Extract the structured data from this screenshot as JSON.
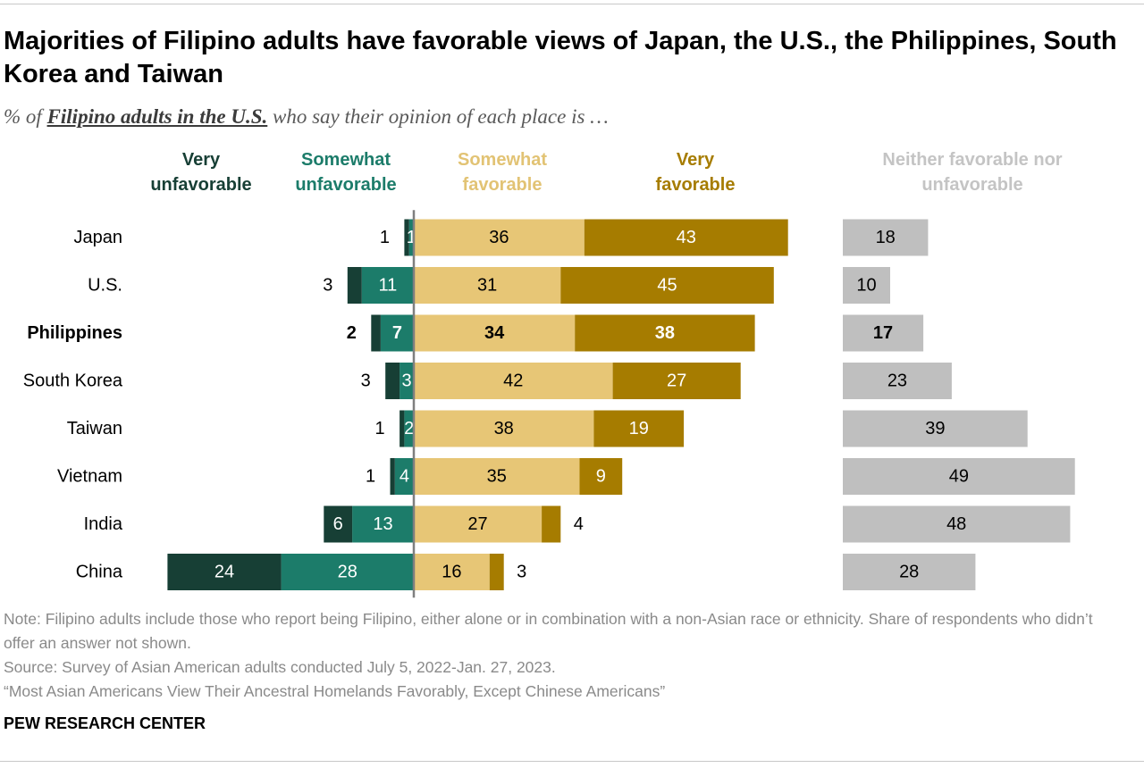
{
  "header": {
    "title": "Majorities of Filipino adults have favorable views of Japan, the U.S., the Philippines, South Korea and Taiwan",
    "subtitle_prefix": "% of ",
    "subtitle_emphasis": "Filipino adults in the U.S.",
    "subtitle_suffix": " who say their opinion of each place is …"
  },
  "chart_data": {
    "type": "bar",
    "orientation": "horizontal",
    "stacked": "diverging",
    "categories": [
      "Japan",
      "U.S.",
      "Philippines",
      "South Korea",
      "Taiwan",
      "Vietnam",
      "India",
      "China"
    ],
    "highlight_category": "Philippines",
    "series": [
      {
        "name": "Very unfavorable",
        "side": "negative",
        "color": "#173f35",
        "values": [
          1,
          3,
          2,
          3,
          1,
          1,
          6,
          24
        ]
      },
      {
        "name": "Somewhat unfavorable",
        "side": "negative",
        "color": "#1c7c6a",
        "values": [
          1,
          11,
          7,
          3,
          2,
          4,
          13,
          28
        ]
      },
      {
        "name": "Somewhat favorable",
        "side": "positive",
        "color": "#e7c676",
        "values": [
          36,
          31,
          34,
          42,
          38,
          35,
          27,
          16
        ]
      },
      {
        "name": "Very favorable",
        "side": "positive",
        "color": "#a67c00",
        "values": [
          43,
          45,
          38,
          27,
          19,
          9,
          4,
          3
        ]
      },
      {
        "name": "Neither favorable nor unfavorable",
        "side": "separate",
        "color": "#bfbfbf",
        "values": [
          18,
          10,
          17,
          23,
          39,
          49,
          48,
          28
        ]
      }
    ],
    "legend_labels": [
      {
        "line1": "Very",
        "line2": "unfavorable",
        "color": "#173f35"
      },
      {
        "line1": "Somewhat",
        "line2": "unfavorable",
        "color": "#1c7c6a"
      },
      {
        "line1": "Somewhat",
        "line2": "favorable",
        "color": "#e2c374"
      },
      {
        "line1": "Very",
        "line2": "favorable",
        "color": "#a67c00"
      },
      {
        "line1": "Neither favorable nor",
        "line2": "unfavorable",
        "color": "#c4c4c4"
      }
    ],
    "legend_placement": "top",
    "grid": false
  },
  "footer": {
    "note": "Note: Filipino adults include those who report being Filipino, either alone or in combination with a non-Asian race or ethnicity. Share of respondents who didn’t offer an answer not shown.",
    "source": "Source: Survey of Asian American adults conducted July 5, 2022-Jan. 27, 2023.",
    "report": "“Most Asian Americans View Their Ancestral Homelands Favorably, Except Chinese Americans”",
    "brand": "PEW RESEARCH CENTER"
  }
}
